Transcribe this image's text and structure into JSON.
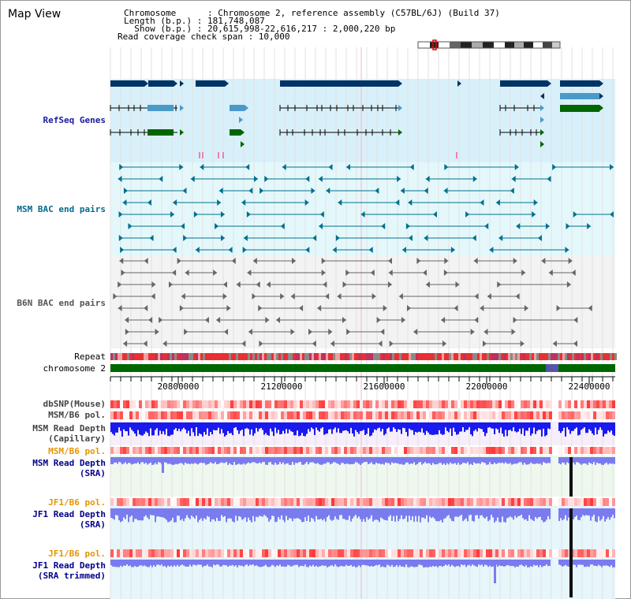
{
  "title": "Map View",
  "header": {
    "chromosome_line": "Chromosome      : Chromosome 2, reference assembly (C57BL/6J) (Build 37)",
    "length_line": "Length (b.p.) : 181,748,087",
    "show_line": "  Show (b.p.) : 20,615,998-22,616,217 : 2,000,220 bp",
    "coverage_line": "Read coverage check span : 10,000"
  },
  "tracks": {
    "refseq": "RefSeq Genes",
    "msm_bac": "MSM BAC end pairs",
    "b6n_bac": "B6N BAC end pairs",
    "repeat": "Repeat",
    "chromosome": "chromosome 2",
    "dbsnp": "dbSNP(Mouse)",
    "msm_b6_pol": "MSM/B6 pol.",
    "msm_depth_cap_1": "MSM Read Depth",
    "msm_depth_cap_2": "(Capillary)",
    "msm_b6_pol_2": "MSM/B6 pol.",
    "msm_depth_sra_1": "MSM Read Depth",
    "msm_depth_sra_2": "(SRA)",
    "jf1_pol_1": "JF1/B6 pol.",
    "jf1_depth_sra_1": "JF1 Read Depth",
    "jf1_depth_sra_2": "(SRA)",
    "jf1_pol_2": "JF1/B6 pol.",
    "jf1_depth_trim_1": "JF1 Read Depth",
    "jf1_depth_trim_2": "(SRA trimmed)"
  },
  "axis": {
    "ticks": [
      "20800000",
      "21200000",
      "21600000",
      "22000000",
      "22400000"
    ]
  },
  "colors": {
    "refseq_bg": "#d8f0fa",
    "msm_bg": "#e4f8fb",
    "b6n_bg": "#f3f3f3",
    "gene_dark": "#003366",
    "gene_light": "#4a9ac8",
    "gene_green": "#006600",
    "msm_line": "#00708f",
    "b6n_line": "#666666",
    "chrom_green": "#006600",
    "depth_blue": "#1a1aee",
    "depth_light_blue": "#7b7bf0",
    "pol_red": "#ee2222"
  }
}
